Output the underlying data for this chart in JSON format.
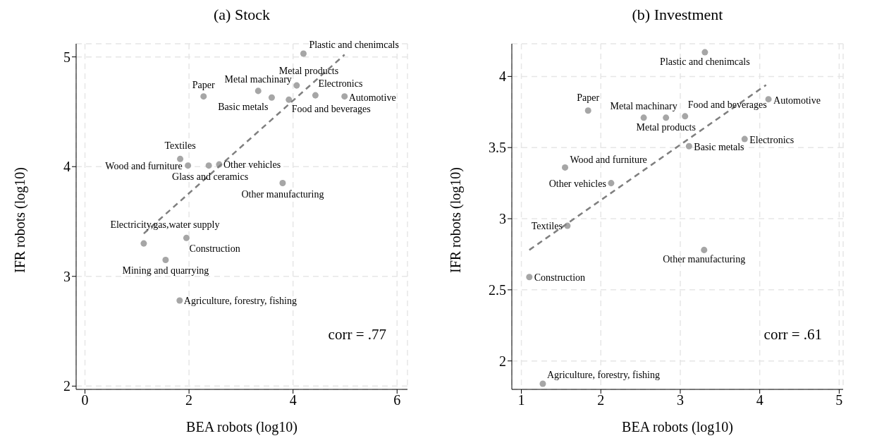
{
  "chart_data": [
    {
      "type": "scatter",
      "title": "(a) Stock",
      "xlabel": "BEA robots (log10)",
      "ylabel": "IFR robots (log10)",
      "xlim": [
        -0.17,
        6.2
      ],
      "ylim": [
        1.97,
        5.12
      ],
      "xticks": [
        0,
        2,
        4,
        6
      ],
      "yticks": [
        2,
        3,
        4,
        5
      ],
      "grid": true,
      "series": [
        {
          "type": "scatter",
          "color": "#a6a6a6",
          "marker": "circle",
          "x": [
            4.2,
            4.07,
            3.33,
            3.59,
            2.28,
            3.92,
            4.43,
            4.99,
            1.83,
            1.98,
            2.38,
            2.58,
            3.8,
            1.13,
            1.95,
            1.55,
            1.82
          ],
          "values": [
            5.03,
            4.74,
            4.69,
            4.63,
            4.64,
            4.61,
            4.65,
            4.64,
            4.07,
            4.01,
            4.01,
            4.02,
            3.85,
            3.3,
            3.35,
            3.15,
            2.78
          ]
        },
        {
          "type": "line",
          "color": "#7f7f7f",
          "line_style": "dashed",
          "marker": "none",
          "x": [
            1.13,
            4.99
          ],
          "values": [
            3.39,
            5.02
          ]
        }
      ],
      "annotations": [
        {
          "text": "Plastic and chenimcals",
          "x": 4.2,
          "y": 5.03
        },
        {
          "text": "Metal products",
          "x": 4.07,
          "y": 4.74
        },
        {
          "text": "Metal machinary",
          "x": 3.33,
          "y": 4.69
        },
        {
          "text": "Basic metals",
          "x": 3.59,
          "y": 4.63
        },
        {
          "text": "Paper",
          "x": 2.28,
          "y": 4.64
        },
        {
          "text": "Food and beverages",
          "x": 3.92,
          "y": 4.61
        },
        {
          "text": "Electronics",
          "x": 4.43,
          "y": 4.65
        },
        {
          "text": "Automotive",
          "x": 4.99,
          "y": 4.64
        },
        {
          "text": "Textiles",
          "x": 1.83,
          "y": 4.07
        },
        {
          "text": "Wood and furniture",
          "x": 1.98,
          "y": 4.01
        },
        {
          "text": "Glass and ceramics",
          "x": 2.38,
          "y": 4.01
        },
        {
          "text": "Other vehicles",
          "x": 2.58,
          "y": 4.02
        },
        {
          "text": "Other manufacturing",
          "x": 3.8,
          "y": 3.85
        },
        {
          "text": "Electricity,gas,water supply",
          "x": 1.13,
          "y": 3.3
        },
        {
          "text": "Construction",
          "x": 1.95,
          "y": 3.35
        },
        {
          "text": "Mining and quarrying",
          "x": 1.55,
          "y": 3.15
        },
        {
          "text": "Agriculture, forestry, fishing",
          "x": 1.82,
          "y": 2.78
        },
        "corr = .77"
      ]
    },
    {
      "type": "scatter",
      "title": "(b) Investment",
      "xlabel": "BEA robots (log10)",
      "ylabel": "IFR robots (log10)",
      "xlim": [
        0.88,
        5.05
      ],
      "ylim": [
        1.8,
        4.23
      ],
      "xticks": [
        1,
        2,
        3,
        4,
        5
      ],
      "yticks": [
        2,
        2.5,
        3,
        3.5,
        4
      ],
      "grid": true,
      "series": [
        {
          "type": "scatter",
          "color": "#a6a6a6",
          "marker": "circle",
          "x": [
            3.31,
            1.84,
            2.54,
            2.82,
            3.06,
            4.11,
            3.81,
            3.11,
            1.55,
            2.13,
            1.58,
            3.3,
            1.1,
            1.27
          ],
          "values": [
            4.17,
            3.76,
            3.71,
            3.71,
            3.72,
            3.84,
            3.56,
            3.51,
            3.36,
            3.25,
            2.95,
            2.78,
            2.59,
            1.84
          ]
        },
        {
          "type": "line",
          "color": "#7f7f7f",
          "line_style": "dashed",
          "marker": "none",
          "x": [
            1.1,
            4.08
          ],
          "values": [
            2.78,
            3.94
          ]
        }
      ],
      "annotations": [
        {
          "text": "Plastic and chenimcals",
          "x": 3.31,
          "y": 4.17
        },
        {
          "text": "Paper",
          "x": 1.84,
          "y": 3.76
        },
        {
          "text": "Metal machinary",
          "x": 2.54,
          "y": 3.71
        },
        {
          "text": "Metal products",
          "x": 2.82,
          "y": 3.71
        },
        {
          "text": "Food and beverages",
          "x": 3.06,
          "y": 3.72
        },
        {
          "text": "Automotive",
          "x": 4.11,
          "y": 3.84
        },
        {
          "text": "Electronics",
          "x": 3.81,
          "y": 3.56
        },
        {
          "text": "Basic metals",
          "x": 3.11,
          "y": 3.51
        },
        {
          "text": "Wood and furniture",
          "x": 1.55,
          "y": 3.36
        },
        {
          "text": "Other vehicles",
          "x": 2.13,
          "y": 3.25
        },
        {
          "text": "Textiles",
          "x": 1.58,
          "y": 2.95
        },
        {
          "text": "Other manufacturing",
          "x": 3.3,
          "y": 2.78
        },
        {
          "text": "Construction",
          "x": 1.1,
          "y": 2.59
        },
        {
          "text": "Agriculture, forestry, fishing",
          "x": 1.27,
          "y": 1.84
        },
        "corr = .61"
      ]
    }
  ]
}
